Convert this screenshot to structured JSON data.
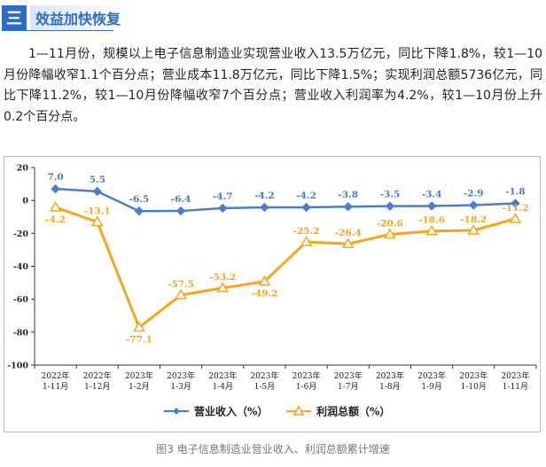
{
  "header": {
    "icon": "三",
    "title": "效益加快恢复"
  },
  "paragraph": "1—11月份，规模以上电子信息制造业实现营业收入13.5万亿元，同比下降1.8%，较1—10月份降幅收窄1.1个百分点；营业成本11.8万亿元，同比下降1.5%；实现利润总额5736亿元，同比下降11.2%，较1—10月份降幅收窄7个百分点；营业收入利润率为4.2%，较1—10月份上升0.2个百分点。",
  "caption": "图3 电子信息制造业营业收入、利润总额累计增速",
  "colors": {
    "accent": "#2f6cc4",
    "revenue": "#4a7ec8",
    "profit": "#f7a51e"
  },
  "chart_data": {
    "type": "line",
    "title": "",
    "categories": [
      [
        "2022年",
        "1-11月"
      ],
      [
        "2022年",
        "1-12月"
      ],
      [
        "2023年",
        "1-2月"
      ],
      [
        "2023年",
        "1-3月"
      ],
      [
        "2023年",
        "1-4月"
      ],
      [
        "2023年",
        "1-5月"
      ],
      [
        "2023年",
        "1-6月"
      ],
      [
        "2023年",
        "1-7月"
      ],
      [
        "2023年",
        "1-8月"
      ],
      [
        "2023年",
        "1-9月"
      ],
      [
        "2023年",
        "1-10月"
      ],
      [
        "2023年",
        "1-11月"
      ]
    ],
    "series": [
      {
        "name": "营业收入（%）",
        "values": [
          7.0,
          5.5,
          -6.5,
          -6.4,
          -4.7,
          -4.2,
          -4.2,
          -3.8,
          -3.5,
          -3.4,
          -2.9,
          -1.8
        ],
        "labels": [
          "7.0",
          "5.5",
          "-6.5",
          "-6.4",
          "-4.7",
          "-4.2",
          "-4.2",
          "-3.8",
          "-3.5",
          "-3.4",
          "-2.9",
          "-1.8"
        ],
        "marker": "diamond"
      },
      {
        "name": "利润总额（%）",
        "values": [
          -4.2,
          -13.1,
          -77.1,
          -57.5,
          -53.2,
          -49.2,
          -25.2,
          -26.4,
          -20.6,
          -18.6,
          -18.2,
          -11.2
        ],
        "labels": [
          "-4.2",
          "-13.1",
          "-77.1",
          "-57.5",
          "-53.2",
          "-49.2",
          "-25.2",
          "-26.4",
          "-20.6",
          "-18.6",
          "-18.2",
          "-11.2"
        ],
        "marker": "triangle"
      }
    ],
    "yticks": [
      "20",
      "0",
      "-20",
      "-40",
      "-60",
      "-80",
      "-100"
    ],
    "ylim": [
      -100,
      20
    ],
    "legend_position": "bottom"
  }
}
